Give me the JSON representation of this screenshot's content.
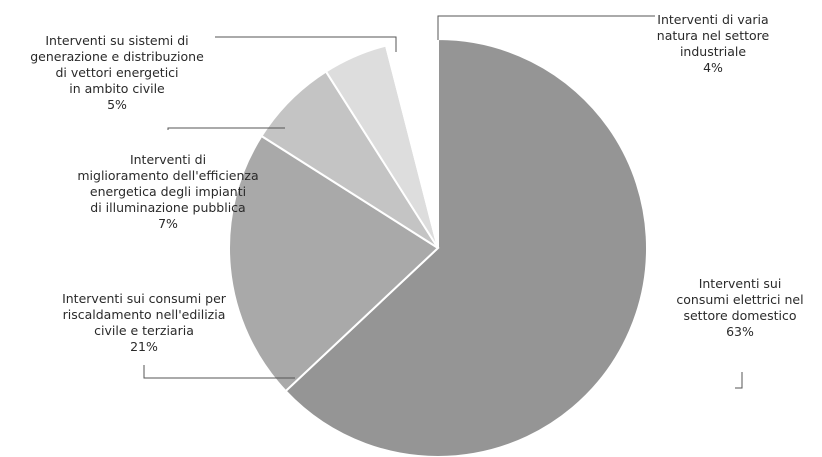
{
  "chart_data": {
    "type": "pie",
    "title": "",
    "start_angle_deg": 0,
    "direction": "clockwise",
    "slices": [
      {
        "label_lines": [
          "Interventi sui",
          "consumi elettrici nel",
          "settore domestico"
        ],
        "value_text": "63%",
        "value": 63,
        "color": "#959595"
      },
      {
        "label_lines": [
          "Interventi sui consumi per",
          "riscaldamento nell'edilizia",
          "civile e terziaria"
        ],
        "value_text": "21%",
        "value": 21,
        "color": "#a9a9a9"
      },
      {
        "label_lines": [
          "Interventi di",
          "miglioramento dell'efficienza",
          "energetica degli impianti",
          "di illuminazione pubblica"
        ],
        "value_text": "7%",
        "value": 7,
        "color": "#c4c4c4"
      },
      {
        "label_lines": [
          "Interventi su sistemi di",
          "generazione e distribuzione",
          "di vettori energetici",
          "in ambito civile"
        ],
        "value_text": "5%",
        "value": 5,
        "color": "#dddddd"
      },
      {
        "label_lines": [
          "Interventi di varia",
          "natura nel settore",
          "industriale"
        ],
        "value_text": "4%",
        "value": 4,
        "color": "#ffffff"
      }
    ]
  }
}
